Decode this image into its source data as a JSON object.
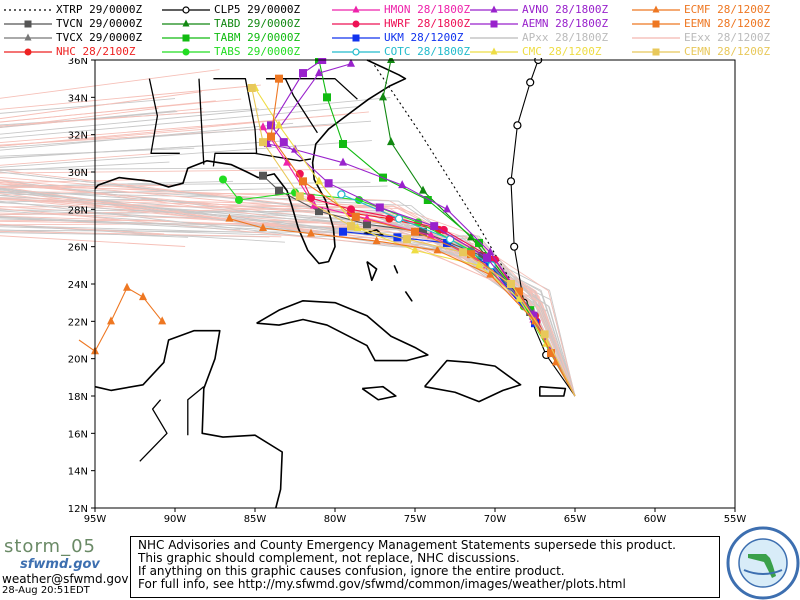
{
  "legend": [
    {
      "name": "XTRP 29/0000Z",
      "color": "#000000",
      "marker": "none",
      "dotted": true
    },
    {
      "name": "TVCN 29/0000Z",
      "color": "#555555",
      "marker": "square"
    },
    {
      "name": "TVCX 29/0000Z",
      "color": "#777777",
      "marker": "triangle"
    },
    {
      "name": "NHC 28/2100Z",
      "color": "#ee2222",
      "marker": "circle"
    },
    {
      "name": "CLP5 29/0000Z",
      "color": "#000000",
      "marker": "ocircle"
    },
    {
      "name": "TABD 29/0000Z",
      "color": "#118811",
      "marker": "triangle"
    },
    {
      "name": "TABM 29/0000Z",
      "color": "#11bb11",
      "marker": "square"
    },
    {
      "name": "TABS 29/0000Z",
      "color": "#22dd22",
      "marker": "circle"
    },
    {
      "name": "HMON 28/1800Z",
      "color": "#ee22aa",
      "marker": "triangle"
    },
    {
      "name": "HWRF 28/1800Z",
      "color": "#ee1155",
      "marker": "circle"
    },
    {
      "name": "UKM 28/1200Z",
      "color": "#1133ee",
      "marker": "square"
    },
    {
      "name": "COTC 28/1800Z",
      "color": "#22bbcc",
      "marker": "ocircle"
    },
    {
      "name": "AVNO 28/1800Z",
      "color": "#9922cc",
      "marker": "triangle"
    },
    {
      "name": "AEMN 28/1800Z",
      "color": "#9922cc",
      "marker": "square"
    },
    {
      "name": "APxx 28/1800Z",
      "color": "#bbbbbb",
      "marker": "none"
    },
    {
      "name": "CMC 28/1200Z",
      "color": "#eedd44",
      "marker": "triangle"
    },
    {
      "name": "ECMF 28/1200Z",
      "color": "#ee7722",
      "marker": "triangle"
    },
    {
      "name": "EEMN 28/1200Z",
      "color": "#ee7722",
      "marker": "square"
    },
    {
      "name": "EExx 28/1200Z",
      "color": "#f4b8b0",
      "marker": "none"
    },
    {
      "name": "CEMN 28/1200Z",
      "color": "#e8c85a",
      "marker": "square"
    }
  ],
  "axes": {
    "lon_labels": [
      "95W",
      "90W",
      "85W",
      "80W",
      "75W",
      "70W",
      "65W",
      "60W",
      "55W"
    ],
    "lat_labels": [
      "36N",
      "34N",
      "32N",
      "30N",
      "28N",
      "26N",
      "24N",
      "22N",
      "20N",
      "18N",
      "16N",
      "14N",
      "12N"
    ]
  },
  "tracks": [
    {
      "name": "XTRP",
      "color": "#000000",
      "points": [
        [
          -65.0,
          18.0
        ],
        [
          -68.0,
          22.7
        ],
        [
          -71.3,
          27.5
        ],
        [
          -74.6,
          32.0
        ],
        [
          -77.6,
          35.8
        ]
      ]
    },
    {
      "name": "CLP5",
      "color": "#000000",
      "points": [
        [
          -65.0,
          18.0
        ],
        [
          -66.8,
          20.2
        ],
        [
          -68.2,
          23.0
        ],
        [
          -68.8,
          26.0
        ],
        [
          -69.0,
          29.5
        ],
        [
          -68.6,
          32.5
        ],
        [
          -67.8,
          34.8
        ],
        [
          -67.3,
          36.0
        ]
      ]
    },
    {
      "name": "NHC",
      "color": "#ee2222",
      "points": [
        [
          -65.0,
          18.0
        ],
        [
          -67.5,
          22.3
        ],
        [
          -70.2,
          25.3
        ],
        [
          -73.5,
          26.9
        ],
        [
          -76.6,
          27.5
        ],
        [
          -79.0,
          27.8
        ]
      ]
    },
    {
      "name": "TVCN",
      "color": "#555555",
      "points": [
        [
          -65.0,
          18.0
        ],
        [
          -67.8,
          22.5
        ],
        [
          -70.8,
          25.5
        ],
        [
          -74.5,
          26.8
        ],
        [
          -78.0,
          27.2
        ],
        [
          -81.0,
          27.9
        ],
        [
          -83.5,
          29.0
        ],
        [
          -84.5,
          29.8
        ]
      ]
    },
    {
      "name": "TABD",
      "color": "#118811",
      "points": [
        [
          -65.0,
          18.0
        ],
        [
          -68.0,
          22.8
        ],
        [
          -71.5,
          26.5
        ],
        [
          -74.5,
          29.0
        ],
        [
          -76.5,
          31.6
        ],
        [
          -77.0,
          34.0
        ],
        [
          -76.5,
          36.0
        ]
      ]
    },
    {
      "name": "TABM",
      "color": "#11bb11",
      "points": [
        [
          -65.0,
          18.0
        ],
        [
          -67.8,
          22.6
        ],
        [
          -71.0,
          26.2
        ],
        [
          -74.2,
          28.5
        ],
        [
          -77.0,
          29.7
        ],
        [
          -79.5,
          31.5
        ],
        [
          -80.5,
          34.0
        ],
        [
          -81.0,
          36.0
        ]
      ]
    },
    {
      "name": "TABS",
      "color": "#22dd22",
      "points": [
        [
          -65.0,
          18.0
        ],
        [
          -68.2,
          22.8
        ],
        [
          -71.5,
          25.8
        ],
        [
          -74.8,
          27.3
        ],
        [
          -78.5,
          28.5
        ],
        [
          -82.5,
          28.9
        ],
        [
          -86.0,
          28.5
        ],
        [
          -87.0,
          29.6
        ]
      ]
    },
    {
      "name": "HMON",
      "color": "#ee22aa",
      "points": [
        [
          -65.0,
          18.0
        ],
        [
          -67.6,
          22.1
        ],
        [
          -70.5,
          25.0
        ],
        [
          -74.0,
          26.6
        ],
        [
          -78.0,
          27.5
        ],
        [
          -81.3,
          28.2
        ],
        [
          -83.0,
          30.5
        ],
        [
          -84.5,
          32.4
        ]
      ]
    },
    {
      "name": "HWRF",
      "color": "#ee1155",
      "points": [
        [
          -65.0,
          18.0
        ],
        [
          -67.4,
          22.0
        ],
        [
          -70.0,
          25.3
        ],
        [
          -73.2,
          26.9
        ],
        [
          -76.0,
          27.5
        ],
        [
          -79.0,
          28.0
        ],
        [
          -81.5,
          28.6
        ],
        [
          -82.2,
          29.9
        ]
      ]
    },
    {
      "name": "UKM",
      "color": "#1133ee",
      "points": [
        [
          -65.0,
          18.0
        ],
        [
          -67.5,
          21.9
        ],
        [
          -70.3,
          25.0
        ],
        [
          -73.0,
          26.2
        ],
        [
          -76.1,
          26.5
        ],
        [
          -79.5,
          26.8
        ]
      ]
    },
    {
      "name": "COTC",
      "color": "#22bbcc",
      "points": [
        [
          -65.0,
          18.0
        ],
        [
          -67.6,
          22.3
        ],
        [
          -70.2,
          25.0
        ],
        [
          -72.8,
          26.4
        ],
        [
          -76.0,
          27.5
        ],
        [
          -79.6,
          28.8
        ]
      ]
    },
    {
      "name": "AVNO",
      "color": "#9922cc",
      "points": [
        [
          -65.0,
          18.0
        ],
        [
          -67.6,
          22.4
        ],
        [
          -70.3,
          25.7
        ],
        [
          -73.0,
          28.0
        ],
        [
          -75.8,
          29.3
        ],
        [
          -79.5,
          30.5
        ],
        [
          -82.5,
          31.2
        ],
        [
          -84.2,
          31.5
        ],
        [
          -81.0,
          35.3
        ],
        [
          -79.0,
          35.8
        ]
      ]
    },
    {
      "name": "AEMN",
      "color": "#9922cc",
      "points": [
        [
          -65.0,
          18.0
        ],
        [
          -67.6,
          22.3
        ],
        [
          -70.5,
          25.4
        ],
        [
          -73.8,
          27.1
        ],
        [
          -77.2,
          28.1
        ],
        [
          -80.4,
          29.4
        ],
        [
          -83.2,
          31.6
        ],
        [
          -84.0,
          32.5
        ],
        [
          -82.0,
          35.3
        ],
        [
          -80.8,
          36.0
        ]
      ]
    },
    {
      "name": "CMC",
      "color": "#eedd44",
      "points": [
        [
          -65.0,
          18.0
        ],
        [
          -66.8,
          20.8
        ],
        [
          -68.5,
          23.2
        ],
        [
          -71.0,
          25.0
        ],
        [
          -75.0,
          25.8
        ],
        [
          -78.6,
          27.0
        ],
        [
          -81.0,
          29.5
        ],
        [
          -83.5,
          32.5
        ],
        [
          -85.0,
          34.5
        ]
      ]
    },
    {
      "name": "ECMF",
      "color": "#ee7722",
      "points": [
        [
          -65.0,
          18.0
        ],
        [
          -66.2,
          19.8
        ],
        [
          -67.5,
          22.0
        ],
        [
          -70.3,
          24.5
        ],
        [
          -73.6,
          25.8
        ],
        [
          -77.4,
          26.3
        ],
        [
          -81.5,
          26.7
        ],
        [
          -84.5,
          27.0
        ],
        [
          -86.6,
          27.5
        ]
      ]
    },
    {
      "name": "EEMN",
      "color": "#ee7722",
      "points": [
        [
          -65.0,
          18.0
        ],
        [
          -66.5,
          20.3
        ],
        [
          -68.5,
          23.6
        ],
        [
          -71.5,
          25.6
        ],
        [
          -75.0,
          26.8
        ],
        [
          -78.7,
          27.6
        ],
        [
          -82.0,
          29.5
        ],
        [
          -84.0,
          31.9
        ],
        [
          -83.5,
          35.0
        ]
      ]
    },
    {
      "name": "CEMN",
      "color": "#e8c85a",
      "points": [
        [
          -65.0,
          18.0
        ],
        [
          -66.9,
          21.3
        ],
        [
          -69.0,
          24.0
        ],
        [
          -72.0,
          25.7
        ],
        [
          -75.5,
          26.4
        ],
        [
          -79.0,
          27.1
        ],
        [
          -82.2,
          28.7
        ],
        [
          -84.5,
          31.6
        ],
        [
          -85.2,
          34.5
        ]
      ]
    },
    {
      "name": "ECMF-aux",
      "color": "#ee7722",
      "points": [
        [
          -96.0,
          21.0
        ],
        [
          -95.0,
          20.4
        ],
        [
          -94.0,
          22.0
        ],
        [
          -93.0,
          23.8
        ],
        [
          -92.0,
          23.3
        ],
        [
          -90.8,
          22.0
        ]
      ]
    }
  ],
  "bottom": {
    "storm_label": "storm_05",
    "brand_word": "sfwmd.gov",
    "email": "weather@sfwmd.gov",
    "timestamp": "28-Aug 20:51EDT",
    "notice_lines": [
      "NHC Advisories and County Emergency Management Statements supersede this product.",
      "This graphic should complement, not replace, NHC discussions.",
      "If anything on this graphic causes confusion, ignore the entire product.",
      "For full info, see   http://my.sfwmd.gov/sfwmd/common/images/weather/plots.html"
    ]
  }
}
